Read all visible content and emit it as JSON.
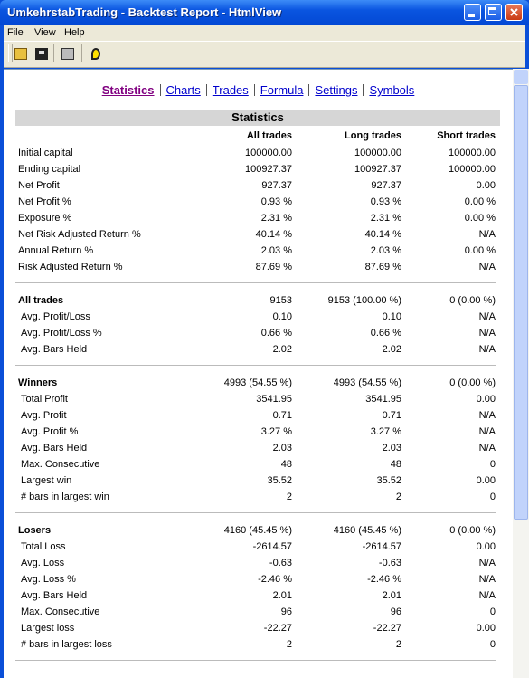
{
  "window": {
    "title": "UmkehrstabTrading - Backtest Report - HtmlView"
  },
  "menu": [
    "File",
    "View",
    "Help"
  ],
  "nav": [
    "Statistics",
    "Charts",
    "Trades",
    "Formula",
    "Settings",
    "Symbols"
  ],
  "table": {
    "title": "Statistics",
    "columns": [
      "All trades",
      "Long trades",
      "Short trades"
    ],
    "sections": [
      {
        "rows": [
          [
            "Initial capital",
            "100000.00",
            "100000.00",
            "100000.00"
          ],
          [
            "Ending capital",
            "100927.37",
            "100927.37",
            "100000.00"
          ],
          [
            "Net Profit",
            "927.37",
            "927.37",
            "0.00"
          ],
          [
            "Net Profit %",
            "0.93 %",
            "0.93 %",
            "0.00 %"
          ],
          [
            "Exposure %",
            "2.31 %",
            "2.31 %",
            "0.00 %"
          ],
          [
            "Net Risk Adjusted Return %",
            "40.14 %",
            "40.14 %",
            "N/A"
          ],
          [
            "Annual Return %",
            "2.03 %",
            "2.03 %",
            "0.00 %"
          ],
          [
            "Risk Adjusted Return %",
            "87.69 %",
            "87.69 %",
            "N/A"
          ]
        ]
      },
      {
        "header": [
          "All trades",
          "9153",
          "9153 (100.00 %)",
          "0 (0.00 %)"
        ],
        "rows": [
          [
            "Avg. Profit/Loss",
            "0.10",
            "0.10",
            "N/A"
          ],
          [
            "Avg. Profit/Loss %",
            "0.66 %",
            "0.66 %",
            "N/A"
          ],
          [
            "Avg. Bars Held",
            "2.02",
            "2.02",
            "N/A"
          ]
        ]
      },
      {
        "header": [
          "Winners",
          "4993 (54.55 %)",
          "4993 (54.55 %)",
          "0 (0.00 %)"
        ],
        "rows": [
          [
            "Total Profit",
            "3541.95",
            "3541.95",
            "0.00"
          ],
          [
            "Avg. Profit",
            "0.71",
            "0.71",
            "N/A"
          ],
          [
            "Avg. Profit %",
            "3.27 %",
            "3.27 %",
            "N/A"
          ],
          [
            "Avg. Bars Held",
            "2.03",
            "2.03",
            "N/A"
          ],
          [
            "Max. Consecutive",
            "48",
            "48",
            "0"
          ],
          [
            "Largest win",
            "35.52",
            "35.52",
            "0.00"
          ],
          [
            "# bars in largest win",
            "2",
            "2",
            "0"
          ]
        ]
      },
      {
        "header": [
          "Losers",
          "4160 (45.45 %)",
          "4160 (45.45 %)",
          "0 (0.00 %)"
        ],
        "rows": [
          [
            "Total Loss",
            "-2614.57",
            "-2614.57",
            "0.00"
          ],
          [
            "Avg. Loss",
            "-0.63",
            "-0.63",
            "N/A"
          ],
          [
            "Avg. Loss %",
            "-2.46 %",
            "-2.46 %",
            "N/A"
          ],
          [
            "Avg. Bars Held",
            "2.01",
            "2.01",
            "N/A"
          ],
          [
            "Max. Consecutive",
            "96",
            "96",
            "0"
          ],
          [
            "Largest loss",
            "-22.27",
            "-22.27",
            "0.00"
          ],
          [
            "# bars in largest loss",
            "2",
            "2",
            "0"
          ]
        ]
      }
    ]
  }
}
